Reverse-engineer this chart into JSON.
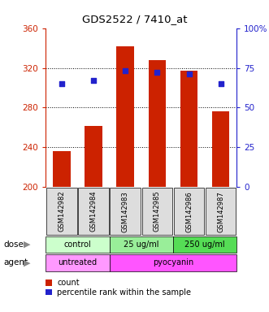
{
  "title": "GDS2522 / 7410_at",
  "samples": [
    "GSM142982",
    "GSM142984",
    "GSM142983",
    "GSM142985",
    "GSM142986",
    "GSM142987"
  ],
  "bar_values": [
    236,
    262,
    342,
    328,
    317,
    276
  ],
  "bar_base": 200,
  "percentile_values": [
    65,
    67,
    73,
    72,
    71,
    65
  ],
  "bar_color": "#CC2200",
  "dot_color": "#2222CC",
  "ylim_left": [
    200,
    360
  ],
  "ylim_right": [
    0,
    100
  ],
  "yticks_left": [
    200,
    240,
    280,
    320,
    360
  ],
  "yticks_right": [
    0,
    25,
    50,
    75,
    100
  ],
  "grid_ticks": [
    240,
    280,
    320
  ],
  "dose_labels": [
    [
      "control",
      0,
      2
    ],
    [
      "25 ug/ml",
      2,
      4
    ],
    [
      "250 ug/ml",
      4,
      6
    ]
  ],
  "dose_colors": [
    "#CCFFCC",
    "#99EE99",
    "#55DD55"
  ],
  "agent_labels": [
    [
      "untreated",
      0,
      2
    ],
    [
      "pyocyanin",
      2,
      6
    ]
  ],
  "agent_colors": [
    "#FF99FF",
    "#FF55FF"
  ],
  "left_axis_color": "#CC2200",
  "right_axis_color": "#2222CC",
  "bar_width": 0.55,
  "figsize": [
    3.31,
    3.84
  ],
  "dpi": 100
}
